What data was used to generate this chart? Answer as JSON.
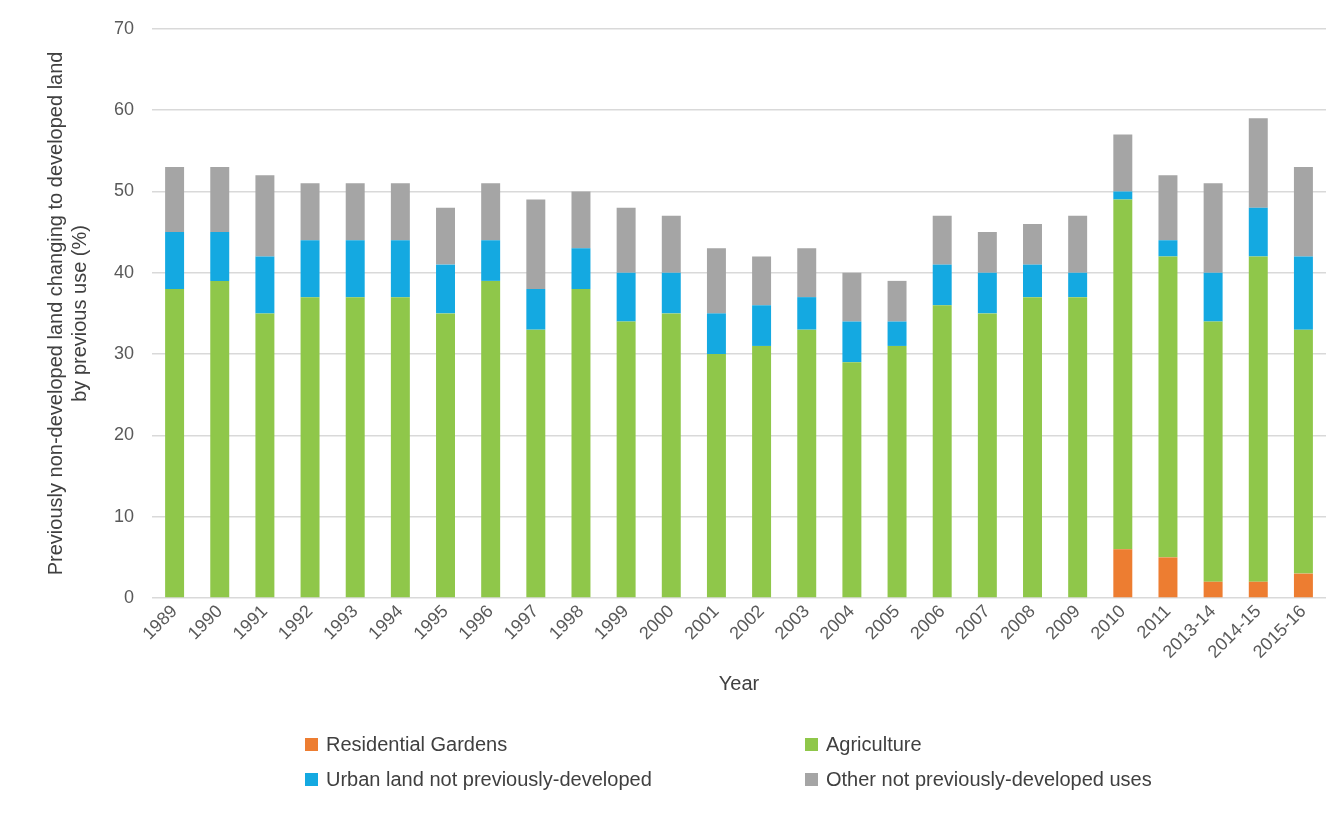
{
  "chart_data": {
    "type": "bar",
    "stacked": true,
    "xlabel": "Year",
    "ylabel": "Previously non-developed land changing to developed land by previous use (%)",
    "categories": [
      "1989",
      "1990",
      "1991",
      "1992",
      "1993",
      "1994",
      "1995",
      "1996",
      "1997",
      "1998",
      "1999",
      "2000",
      "2001",
      "2002",
      "2003",
      "2004",
      "2005",
      "2006",
      "2007",
      "2008",
      "2009",
      "2010",
      "2011",
      "2013-14",
      "2014-15",
      "2015-16"
    ],
    "series": [
      {
        "name": "Residential Gardens",
        "color": "#ed7d31",
        "values": [
          null,
          null,
          null,
          null,
          null,
          null,
          null,
          null,
          null,
          null,
          null,
          null,
          null,
          null,
          null,
          null,
          null,
          null,
          null,
          null,
          null,
          6,
          5,
          2,
          2,
          3
        ]
      },
      {
        "name": "Agriculture",
        "color": "#8fc74a",
        "values": [
          38,
          39,
          35,
          37,
          37,
          37,
          35,
          39,
          33,
          38,
          34,
          35,
          30,
          31,
          33,
          29,
          31,
          36,
          35,
          37,
          37,
          43,
          37,
          32,
          40,
          30
        ]
      },
      {
        "name": "Urban land not previously-developed",
        "color": "#14a9e1",
        "values": [
          7,
          6,
          7,
          7,
          7,
          7,
          6,
          5,
          5,
          5,
          6,
          5,
          5,
          5,
          4,
          5,
          3,
          5,
          5,
          4,
          3,
          1,
          2,
          6,
          6,
          9
        ]
      },
      {
        "name": "Other not previously-developed uses",
        "color": "#a5a5a5",
        "values": [
          8,
          8,
          10,
          7,
          7,
          7,
          7,
          7,
          11,
          7,
          8,
          7,
          8,
          6,
          6,
          6,
          5,
          6,
          5,
          5,
          7,
          7,
          8,
          11,
          11,
          11
        ]
      }
    ],
    "ylim": [
      0,
      70
    ],
    "yticks": [
      0,
      10,
      20,
      30,
      40,
      50,
      60,
      70
    ],
    "grid": "y",
    "legend": "bottom"
  }
}
